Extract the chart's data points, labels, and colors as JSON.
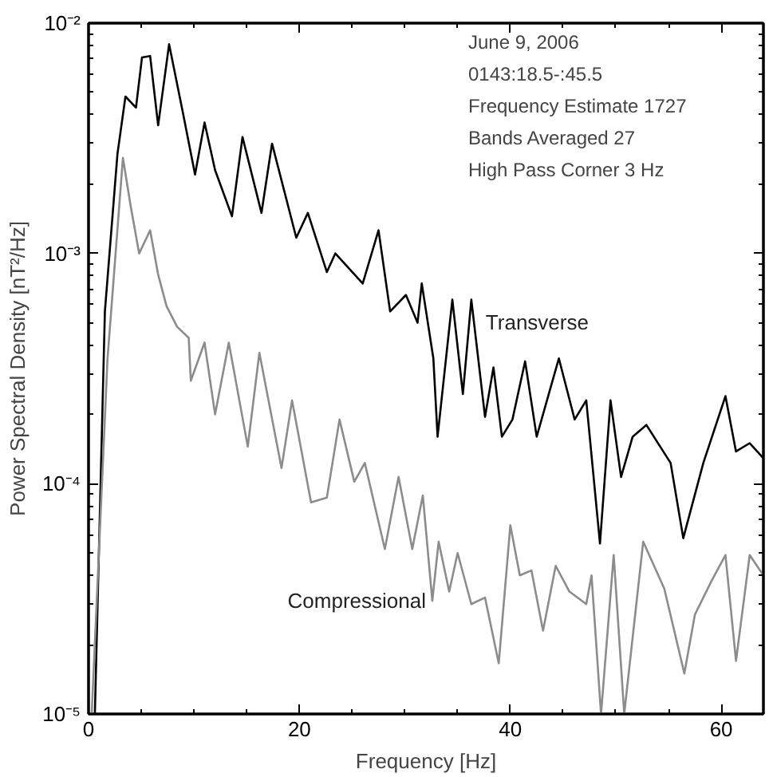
{
  "chart_data": {
    "type": "line",
    "xlabel": "Frequency [Hz]",
    "ylabel": "Power Spectral Density [nT²/Hz]",
    "log": "y",
    "grid": false,
    "marker": "none",
    "line_style": "solid",
    "xlim": [
      0,
      64
    ],
    "ylim": [
      1e-05,
      0.01
    ],
    "xticks": [
      0,
      {
        "value": 5,
        "label": null
      },
      {
        "value": 10,
        "label": null
      },
      {
        "value": 15,
        "label": null
      },
      20,
      {
        "value": 25,
        "label": null
      },
      {
        "value": 30,
        "label": null
      },
      {
        "value": 35,
        "label": null
      },
      40,
      {
        "value": 45,
        "label": null
      },
      {
        "value": 50,
        "label": null
      },
      {
        "value": 55,
        "label": null
      },
      60
    ],
    "yticks": [
      {
        "value": 1e-05,
        "label": "10⁻⁵"
      },
      {
        "value": 2e-05,
        "label": null
      },
      {
        "value": 3e-05,
        "label": null
      },
      {
        "value": 4e-05,
        "label": null
      },
      {
        "value": 5e-05,
        "label": null
      },
      {
        "value": 6e-05,
        "label": null
      },
      {
        "value": 7e-05,
        "label": null
      },
      {
        "value": 8e-05,
        "label": null
      },
      {
        "value": 9e-05,
        "label": null
      },
      {
        "value": 0.0001,
        "label": "10⁻⁴"
      },
      {
        "value": 0.0002,
        "label": null
      },
      {
        "value": 0.0003,
        "label": null
      },
      {
        "value": 0.0004,
        "label": null
      },
      {
        "value": 0.0005,
        "label": null
      },
      {
        "value": 0.0006,
        "label": null
      },
      {
        "value": 0.0007,
        "label": null
      },
      {
        "value": 0.0008,
        "label": null
      },
      {
        "value": 0.0009,
        "label": null
      },
      {
        "value": 0.001,
        "label": "10⁻³"
      },
      {
        "value": 0.002,
        "label": null
      },
      {
        "value": 0.003,
        "label": null
      },
      {
        "value": 0.004,
        "label": null
      },
      {
        "value": 0.005,
        "label": null
      },
      {
        "value": 0.006,
        "label": null
      },
      {
        "value": 0.007,
        "label": null
      },
      {
        "value": 0.008,
        "label": null
      },
      {
        "value": 0.009,
        "label": null
      },
      {
        "value": 0.01,
        "label": "10⁻²"
      }
    ],
    "series": [
      {
        "name": "Transverse",
        "color": "#000000",
        "x": [
          0.6,
          1.55,
          2.74,
          3.5,
          4.5,
          5.07,
          5.84,
          6.6,
          7.64,
          8.94,
          10.1,
          11.0,
          12.0,
          13.6,
          14.6,
          16.4,
          17.4,
          19.7,
          20.8,
          22.6,
          23.4,
          26.0,
          27.5,
          28.6,
          30.1,
          31.2,
          31.6,
          32.7,
          33.1,
          34.5,
          35.5,
          36.3,
          37.6,
          38.4,
          39.2,
          40.2,
          41.4,
          42.5,
          44.6,
          46.1,
          47.2,
          48.5,
          49.5,
          50.5,
          51.6,
          52.9,
          55.2,
          56.4,
          58.3,
          60.4,
          61.4,
          62.7,
          64.0
        ],
        "values": [
          1e-05,
          0.00056,
          0.0027,
          0.0048,
          0.0043,
          0.0071,
          0.0072,
          0.0036,
          0.0081,
          0.0041,
          0.0022,
          0.0037,
          0.0023,
          0.00145,
          0.0032,
          0.0015,
          0.003,
          0.00117,
          0.0015,
          0.00083,
          0.001,
          0.00074,
          0.00126,
          0.00056,
          0.00066,
          0.0005,
          0.00074,
          0.00035,
          0.00016,
          0.00063,
          0.000245,
          0.00063,
          0.000195,
          0.00032,
          0.00016,
          0.00019,
          0.00034,
          0.00016,
          0.00035,
          0.00019,
          0.00023,
          5.5e-05,
          0.00023,
          0.000107,
          0.00016,
          0.00018,
          0.000123,
          5.8e-05,
          0.000123,
          0.00024,
          0.000138,
          0.00015,
          0.000129
        ]
      },
      {
        "name": "Compressional",
        "color": "#8c8c8c",
        "x": [
          0.3,
          1.8,
          3.26,
          4.0,
          4.8,
          5.84,
          6.6,
          7.4,
          8.4,
          9.5,
          9.7,
          11.0,
          12.0,
          13.3,
          15.1,
          16.2,
          18.3,
          19.3,
          21.1,
          22.6,
          23.8,
          25.2,
          26.2,
          28.1,
          29.4,
          30.7,
          31.7,
          32.6,
          33.2,
          34.2,
          35.0,
          36.3,
          37.6,
          38.9,
          40.0,
          40.9,
          42.0,
          43.1,
          44.3,
          45.6,
          47.2,
          47.7,
          48.6,
          49.8,
          50.8,
          52.6,
          54.6,
          56.5,
          57.5,
          59.1,
          60.4,
          61.4,
          62.7,
          64.0
        ],
        "values": [
          1e-05,
          0.00035,
          0.0026,
          0.0016,
          0.001,
          0.00126,
          0.00081,
          0.00059,
          0.00048,
          0.00043,
          0.00028,
          0.00041,
          0.0002,
          0.00041,
          0.000145,
          0.00037,
          0.000117,
          0.00023,
          8.3e-05,
          8.7e-05,
          0.00019,
          0.000102,
          0.000123,
          5.2e-05,
          0.000107,
          5.2e-05,
          8.9e-05,
          3.1e-05,
          5.6e-05,
          3.4e-05,
          5e-05,
          3e-05,
          3.2e-05,
          1.66e-05,
          6.6e-05,
          4e-05,
          4.2e-05,
          2.3e-05,
          4.4e-05,
          3.4e-05,
          3e-05,
          4e-05,
          1e-05,
          4.9e-05,
          1e-05,
          5.6e-05,
          3.5e-05,
          1.5e-05,
          2.7e-05,
          3.8e-05,
          4.9e-05,
          1.7e-05,
          4.9e-05,
          4e-05
        ]
      }
    ],
    "annotations": [
      "June 9, 2006",
      "0143:18.5-:45.5",
      "Frequency Estimate 1727",
      "Bands Averaged 27",
      "High Pass Corner 3 Hz"
    ]
  }
}
